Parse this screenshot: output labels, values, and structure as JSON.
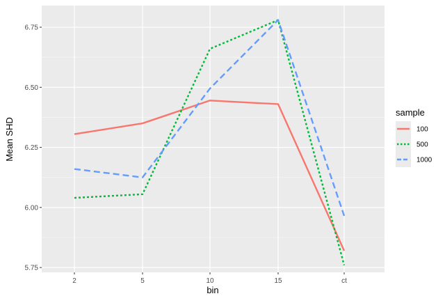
{
  "chart_data": {
    "type": "line",
    "xlabel": "bin",
    "ylabel": "Mean SHD",
    "categories": [
      "2",
      "5",
      "10",
      "15",
      "ct"
    ],
    "ylim": [
      5.73,
      6.84
    ],
    "yticks": [
      5.75,
      6.0,
      6.25,
      6.5,
      6.75
    ],
    "ytick_labels": [
      "5.75",
      "6.00",
      "6.25",
      "6.50",
      "6.75"
    ],
    "grid": true,
    "legend": {
      "title": "sample",
      "placement": "right"
    },
    "series": [
      {
        "name": "100",
        "values": [
          6.305,
          6.35,
          6.445,
          6.43,
          5.82
        ],
        "color": "#F8766D",
        "dash": "solid"
      },
      {
        "name": "500",
        "values": [
          6.04,
          6.055,
          6.66,
          6.78,
          5.76
        ],
        "color": "#00BA38",
        "dash": "dotted"
      },
      {
        "name": "1000",
        "values": [
          6.16,
          6.125,
          6.495,
          6.78,
          5.965
        ],
        "color": "#619CFF",
        "dash": "dashed"
      }
    ]
  }
}
